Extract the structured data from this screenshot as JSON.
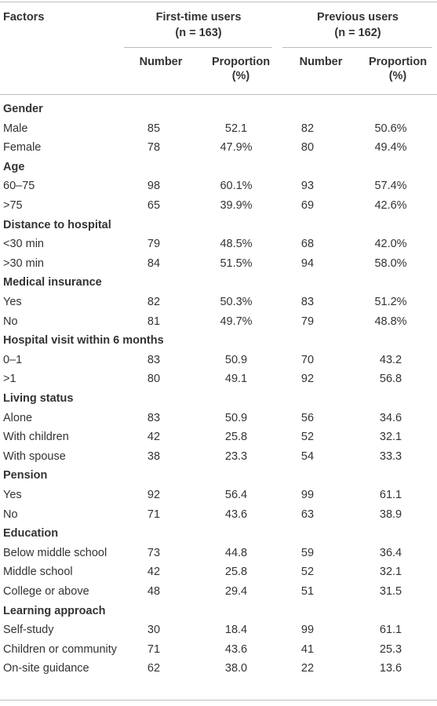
{
  "table": {
    "header": {
      "factors": "Factors",
      "groups": [
        {
          "title": "First-time users",
          "size": "(n = 163)"
        },
        {
          "title": "Previous users",
          "size": "(n = 162)"
        }
      ],
      "columns": [
        "Number",
        "Proportion\n(%)",
        "Number",
        "Proportion\n(%)"
      ]
    },
    "sections": [
      {
        "label": "Gender",
        "rows": [
          [
            "Male",
            "85",
            "52.1",
            "82",
            "50.6%"
          ],
          [
            "Female",
            "78",
            "47.9%",
            "80",
            "49.4%"
          ]
        ]
      },
      {
        "label": "Age",
        "rows": [
          [
            "60–75",
            "98",
            "60.1%",
            "93",
            "57.4%"
          ],
          [
            ">75",
            "65",
            "39.9%",
            "69",
            "42.6%"
          ]
        ]
      },
      {
        "label": "Distance to hospital",
        "rows": [
          [
            "<30 min",
            "79",
            "48.5%",
            "68",
            "42.0%"
          ],
          [
            ">30 min",
            "84",
            "51.5%",
            "94",
            "58.0%"
          ]
        ]
      },
      {
        "label": "Medical insurance",
        "rows": [
          [
            "Yes",
            "82",
            "50.3%",
            "83",
            "51.2%"
          ],
          [
            "No",
            "81",
            "49.7%",
            "79",
            "48.8%"
          ]
        ]
      },
      {
        "label": "Hospital visit within 6 months",
        "rows": [
          [
            "0–1",
            "83",
            "50.9",
            "70",
            "43.2"
          ],
          [
            ">1",
            "80",
            "49.1",
            "92",
            "56.8"
          ]
        ]
      },
      {
        "label": "Living status",
        "rows": [
          [
            "Alone",
            "83",
            "50.9",
            "56",
            "34.6"
          ],
          [
            "With children",
            "42",
            "25.8",
            "52",
            "32.1"
          ],
          [
            "With spouse",
            "38",
            "23.3",
            "54",
            "33.3"
          ]
        ]
      },
      {
        "label": "Pension",
        "rows": [
          [
            "Yes",
            "92",
            "56.4",
            "99",
            "61.1"
          ],
          [
            "No",
            "71",
            "43.6",
            "63",
            "38.9"
          ]
        ]
      },
      {
        "label": "Education",
        "rows": [
          [
            "Below middle school",
            "73",
            "44.8",
            "59",
            "36.4"
          ],
          [
            "Middle school",
            "42",
            "25.8",
            "52",
            "32.1"
          ],
          [
            "College or above",
            "48",
            "29.4",
            "51",
            "31.5"
          ]
        ]
      },
      {
        "label": "Learning approach",
        "rows": [
          [
            "Self-study",
            "30",
            "18.4",
            "99",
            "61.1"
          ],
          [
            "Children or community",
            "71",
            "43.6",
            "41",
            "25.3"
          ],
          [
            "On-site guidance",
            "62",
            "38.0",
            "22",
            "13.6"
          ]
        ]
      }
    ]
  }
}
